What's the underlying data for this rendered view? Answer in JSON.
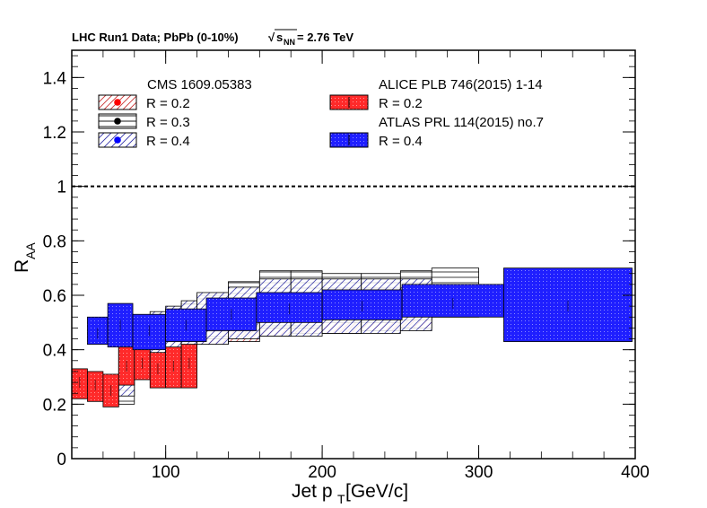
{
  "header": {
    "prefix": "LHC Run1 Data;  PbPb (0-10%)",
    "sqrt_sign": "√",
    "s_symbol": "s",
    "nn_subscript": "NN",
    "energy": " = 2.76 TeV"
  },
  "colors": {
    "alice_red": "#ff2a2a",
    "atlas_blue": "#1f1fff",
    "cms_r02_marker": "#ff0000",
    "cms_r03_marker": "#000000",
    "cms_r04_marker": "#0000ff",
    "hatch_red": "#cc3333",
    "hatch_black": "#000000",
    "hatch_blue": "#3333aa"
  },
  "chart_data": {
    "type": "scatter",
    "title": "",
    "xlabel_main": "Jet p",
    "xlabel_sub": "T",
    "xlabel_unit": " [GeV/c]",
    "ylabel_main": "R",
    "ylabel_sub": "AA",
    "xlim": [
      40,
      400
    ],
    "ylim": [
      0,
      1.5
    ],
    "x_ticks": [
      100,
      200,
      300,
      400
    ],
    "y_ticks": [
      0,
      0.2,
      0.4,
      0.6,
      0.8,
      1,
      1.2,
      1.4
    ],
    "y_tick_labels": [
      "0",
      "0.2",
      "0.4",
      "0.6",
      "0.8",
      "1",
      "1.2",
      "1.4"
    ],
    "x_tick_labels": [
      "100",
      "200",
      "300",
      "400"
    ],
    "reference_line": 1.0,
    "legend": {
      "cms_header": "CMS 1609.05383",
      "alice_header": "ALICE PLB 746(2015) 1-14",
      "atlas_header": "ATLAS PRL 114(2015) no.7",
      "cms_r02": "R = 0.2",
      "cms_r03": "R = 0.3",
      "cms_r04": "R = 0.4",
      "alice_r02": "R = 0.2",
      "atlas_r04": "R = 0.4"
    },
    "series": [
      {
        "name": "ALICE R = 0.2",
        "style": "alice",
        "points": [
          {
            "xlo": 40,
            "xhi": 50,
            "y": 0.28,
            "elo": 0.22,
            "ehi": 0.33
          },
          {
            "xlo": 50,
            "xhi": 60,
            "y": 0.27,
            "elo": 0.21,
            "ehi": 0.32
          },
          {
            "xlo": 60,
            "xhi": 70,
            "y": 0.25,
            "elo": 0.19,
            "ehi": 0.31
          },
          {
            "xlo": 70,
            "xhi": 80,
            "y": 0.34,
            "elo": 0.27,
            "ehi": 0.41
          },
          {
            "xlo": 80,
            "xhi": 90,
            "y": 0.35,
            "elo": 0.29,
            "ehi": 0.42
          },
          {
            "xlo": 90,
            "xhi": 100,
            "y": 0.33,
            "elo": 0.26,
            "ehi": 0.39
          },
          {
            "xlo": 100,
            "xhi": 110,
            "y": 0.34,
            "elo": 0.26,
            "ehi": 0.41
          },
          {
            "xlo": 110,
            "xhi": 120,
            "y": 0.35,
            "elo": 0.26,
            "ehi": 0.42
          }
        ]
      },
      {
        "name": "CMS R = 0.2",
        "style": "cms02",
        "points": [
          {
            "xlo": 70,
            "xhi": 80,
            "y": 0.37,
            "elo": 0.31,
            "ehi": 0.43
          },
          {
            "xlo": 80,
            "xhi": 90,
            "y": 0.39,
            "elo": 0.33,
            "ehi": 0.46
          },
          {
            "xlo": 90,
            "xhi": 100,
            "y": 0.41,
            "elo": 0.35,
            "ehi": 0.49
          },
          {
            "xlo": 100,
            "xhi": 110,
            "y": 0.44,
            "elo": 0.38,
            "ehi": 0.51
          },
          {
            "xlo": 110,
            "xhi": 120,
            "y": 0.46,
            "elo": 0.39,
            "ehi": 0.53
          },
          {
            "xlo": 120,
            "xhi": 140,
            "y": 0.48,
            "elo": 0.42,
            "ehi": 0.55
          },
          {
            "xlo": 140,
            "xhi": 160,
            "y": 0.5,
            "elo": 0.43,
            "ehi": 0.57
          },
          {
            "xlo": 160,
            "xhi": 180,
            "y": 0.52,
            "elo": 0.45,
            "ehi": 0.6
          },
          {
            "xlo": 180,
            "xhi": 200,
            "y": 0.53,
            "elo": 0.46,
            "ehi": 0.61
          },
          {
            "xlo": 200,
            "xhi": 225,
            "y": 0.54,
            "elo": 0.46,
            "ehi": 0.62
          },
          {
            "xlo": 225,
            "xhi": 250,
            "y": 0.55,
            "elo": 0.47,
            "ehi": 0.63
          },
          {
            "xlo": 250,
            "xhi": 270,
            "y": 0.56,
            "elo": 0.48,
            "ehi": 0.64
          }
        ]
      },
      {
        "name": "CMS R = 0.3",
        "style": "cms03",
        "points": [
          {
            "xlo": 70,
            "xhi": 80,
            "y": 0.37,
            "elo": 0.2,
            "ehi": 0.5
          },
          {
            "xlo": 80,
            "xhi": 90,
            "y": 0.41,
            "elo": 0.35,
            "ehi": 0.52
          },
          {
            "xlo": 90,
            "xhi": 100,
            "y": 0.43,
            "elo": 0.35,
            "ehi": 0.53
          },
          {
            "xlo": 100,
            "xhi": 110,
            "y": 0.47,
            "elo": 0.4,
            "ehi": 0.55
          },
          {
            "xlo": 110,
            "xhi": 120,
            "y": 0.5,
            "elo": 0.43,
            "ehi": 0.57
          },
          {
            "xlo": 120,
            "xhi": 140,
            "y": 0.52,
            "elo": 0.44,
            "ehi": 0.6
          },
          {
            "xlo": 140,
            "xhi": 160,
            "y": 0.56,
            "elo": 0.47,
            "ehi": 0.65
          },
          {
            "xlo": 160,
            "xhi": 180,
            "y": 0.58,
            "elo": 0.48,
            "ehi": 0.69
          },
          {
            "xlo": 180,
            "xhi": 200,
            "y": 0.58,
            "elo": 0.48,
            "ehi": 0.69
          },
          {
            "xlo": 200,
            "xhi": 225,
            "y": 0.59,
            "elo": 0.5,
            "ehi": 0.68
          },
          {
            "xlo": 225,
            "xhi": 250,
            "y": 0.59,
            "elo": 0.5,
            "ehi": 0.68
          },
          {
            "xlo": 250,
            "xhi": 270,
            "y": 0.6,
            "elo": 0.51,
            "ehi": 0.69
          },
          {
            "xlo": 270,
            "xhi": 300,
            "y": 0.61,
            "elo": 0.52,
            "ehi": 0.7
          }
        ]
      },
      {
        "name": "CMS R = 0.4",
        "style": "cms04",
        "points": [
          {
            "xlo": 70,
            "xhi": 80,
            "y": 0.37,
            "elo": 0.23,
            "ehi": 0.52
          },
          {
            "xlo": 80,
            "xhi": 90,
            "y": 0.41,
            "elo": 0.31,
            "ehi": 0.52
          },
          {
            "xlo": 90,
            "xhi": 100,
            "y": 0.44,
            "elo": 0.34,
            "ehi": 0.54
          },
          {
            "xlo": 100,
            "xhi": 110,
            "y": 0.46,
            "elo": 0.37,
            "ehi": 0.56
          },
          {
            "xlo": 110,
            "xhi": 120,
            "y": 0.48,
            "elo": 0.39,
            "ehi": 0.58
          },
          {
            "xlo": 120,
            "xhi": 140,
            "y": 0.51,
            "elo": 0.42,
            "ehi": 0.61
          },
          {
            "xlo": 140,
            "xhi": 160,
            "y": 0.53,
            "elo": 0.44,
            "ehi": 0.63
          },
          {
            "xlo": 160,
            "xhi": 180,
            "y": 0.55,
            "elo": 0.45,
            "ehi": 0.66
          },
          {
            "xlo": 180,
            "xhi": 200,
            "y": 0.56,
            "elo": 0.45,
            "ehi": 0.66
          },
          {
            "xlo": 200,
            "xhi": 225,
            "y": 0.56,
            "elo": 0.46,
            "ehi": 0.66
          },
          {
            "xlo": 225,
            "xhi": 250,
            "y": 0.56,
            "elo": 0.46,
            "ehi": 0.66
          },
          {
            "xlo": 250,
            "xhi": 270,
            "y": 0.56,
            "elo": 0.47,
            "ehi": 0.66
          }
        ]
      },
      {
        "name": "ATLAS R = 0.4",
        "style": "atlas",
        "points": [
          {
            "xlo": 50,
            "xhi": 63,
            "y": 0.46,
            "elo": 0.42,
            "ehi": 0.52
          },
          {
            "xlo": 63,
            "xhi": 79,
            "y": 0.49,
            "elo": 0.41,
            "ehi": 0.57
          },
          {
            "xlo": 79,
            "xhi": 100,
            "y": 0.47,
            "elo": 0.4,
            "ehi": 0.53
          },
          {
            "xlo": 100,
            "xhi": 126,
            "y": 0.49,
            "elo": 0.43,
            "ehi": 0.55
          },
          {
            "xlo": 126,
            "xhi": 158,
            "y": 0.53,
            "elo": 0.47,
            "ehi": 0.59
          },
          {
            "xlo": 158,
            "xhi": 200,
            "y": 0.55,
            "elo": 0.5,
            "ehi": 0.61
          },
          {
            "xlo": 200,
            "xhi": 251,
            "y": 0.56,
            "elo": 0.51,
            "ehi": 0.62
          },
          {
            "xlo": 251,
            "xhi": 316,
            "y": 0.57,
            "elo": 0.52,
            "ehi": 0.64
          },
          {
            "xlo": 316,
            "xhi": 398,
            "y": 0.56,
            "elo": 0.43,
            "ehi": 0.7
          }
        ]
      }
    ]
  }
}
